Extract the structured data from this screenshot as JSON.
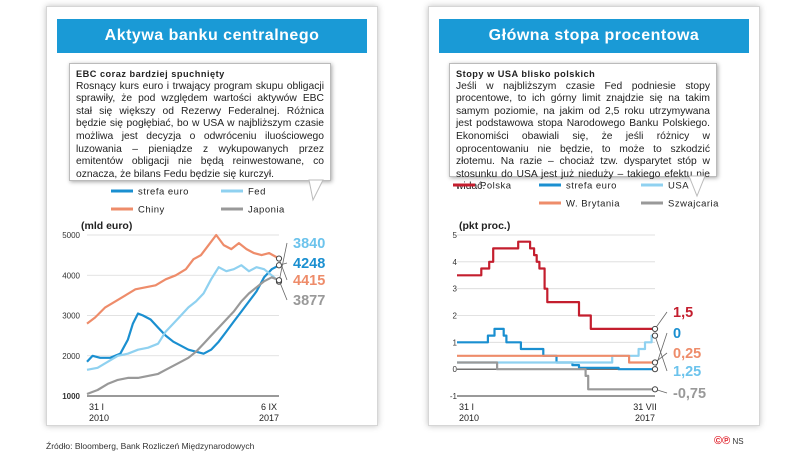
{
  "left": {
    "title": "Aktywa banku centralnego",
    "note_title": "EBC coraz bardziej spuchnięty",
    "note_body": "Rosnący kurs euro i trwający program skupu obligacji sprawiły, że pod względem wartości aktywów EBC stał się większy od Rezerwy Federalnej. Różnica będzie się pogłębiać, bo w USA w najbliższym czasie możliwa jest decyzja o odwróceniu iluościowego luzowania – pieniądze z wykupowanych przez emitentów obligacji nie będą reinwestowane, co oznacza, że bilans Fedu będzie się kurczył."
  },
  "right": {
    "title": "Główna stopa procentowa",
    "note_title": "Stopy w USA blisko polskich",
    "note_body": "Jeśli w najbliższym czasie Fed podniesie stopy procentowe, to ich górny limit znajdzie się na takim samym poziomie, na jakim od 2,5 roku utrzymywana jest podstawowa stopa Narodowego Banku Polskiego. Ekonomiści obawiali się, że jeśli różnicy w oprocentowaniu nie będzie, to może to szkodzić złotemu. Na razie – chociaż tzw. dysparytet stóp w stosunku do USA jest już nieduży – takiego efektu nie widać."
  },
  "footer": {
    "source": "Źródło: Bloomberg, Bank Rozliczeń Międzynarodowych",
    "logo_mark": "©℗",
    "logo_text": "NS"
  },
  "chart_data": [
    {
      "type": "line",
      "ylabel": "(mld euro)",
      "ylim": [
        1000,
        5000
      ],
      "yticks": [
        "1000",
        "2000",
        "3000",
        "4000",
        "5000"
      ],
      "xlim": [
        2010.08,
        2017.69
      ],
      "x_tick_labels": [
        {
          "line1": "31 I",
          "line2": "2010"
        },
        {
          "line1": "6 IX",
          "line2": "2017"
        }
      ],
      "legend_placement": "top",
      "series": [
        {
          "name": "strefa euro",
          "color": "#1a8fd0",
          "end_label": "4248",
          "x": [
            2010.08,
            2010.3,
            2010.6,
            2011.0,
            2011.4,
            2011.7,
            2011.9,
            2012.1,
            2012.3,
            2012.6,
            2012.9,
            2013.2,
            2013.5,
            2013.8,
            2014.1,
            2014.4,
            2014.7,
            2015.0,
            2015.3,
            2015.6,
            2015.9,
            2016.2,
            2016.5,
            2016.8,
            2017.1,
            2017.4,
            2017.69
          ],
          "y": [
            1850,
            2000,
            1950,
            1950,
            2050,
            2400,
            2800,
            3050,
            3000,
            2900,
            2700,
            2500,
            2350,
            2250,
            2150,
            2100,
            2050,
            2150,
            2350,
            2600,
            2850,
            3100,
            3350,
            3600,
            3950,
            4150,
            4248
          ]
        },
        {
          "name": "Fed",
          "color": "#8fd1f0",
          "end_label": "3840",
          "x": [
            2010.08,
            2010.5,
            2010.9,
            2011.3,
            2011.7,
            2012.1,
            2012.5,
            2012.9,
            2013.2,
            2013.5,
            2013.8,
            2014.1,
            2014.4,
            2014.7,
            2015.0,
            2015.3,
            2015.6,
            2015.9,
            2016.2,
            2016.5,
            2016.8,
            2017.1,
            2017.4,
            2017.69
          ],
          "y": [
            1650,
            1700,
            1850,
            2000,
            2050,
            2150,
            2200,
            2300,
            2600,
            2800,
            3000,
            3200,
            3350,
            3550,
            3900,
            4200,
            4100,
            4150,
            4250,
            4100,
            4200,
            4150,
            4000,
            3840
          ]
        },
        {
          "name": "Chiny",
          "color": "#ee8c6a",
          "end_label": "4415",
          "x": [
            2010.08,
            2010.4,
            2010.8,
            2011.2,
            2011.6,
            2012.0,
            2012.4,
            2012.8,
            2013.2,
            2013.6,
            2014.0,
            2014.3,
            2014.6,
            2014.9,
            2015.2,
            2015.5,
            2015.8,
            2016.1,
            2016.4,
            2016.7,
            2017.0,
            2017.3,
            2017.69
          ],
          "y": [
            2800,
            2950,
            3200,
            3350,
            3500,
            3650,
            3700,
            3750,
            3900,
            4000,
            4150,
            4400,
            4500,
            4750,
            5000,
            4750,
            4650,
            4800,
            4650,
            4550,
            4500,
            4550,
            4415
          ]
        },
        {
          "name": "Japonia",
          "color": "#999999",
          "end_label": "3877",
          "x": [
            2010.08,
            2010.5,
            2010.9,
            2011.3,
            2011.7,
            2012.1,
            2012.5,
            2012.9,
            2013.2,
            2013.5,
            2013.8,
            2014.1,
            2014.4,
            2014.7,
            2015.0,
            2015.3,
            2015.6,
            2015.9,
            2016.2,
            2016.5,
            2016.8,
            2017.1,
            2017.4,
            2017.69
          ],
          "y": [
            1050,
            1150,
            1300,
            1400,
            1450,
            1450,
            1500,
            1550,
            1650,
            1750,
            1850,
            1950,
            2100,
            2300,
            2500,
            2700,
            2900,
            3100,
            3350,
            3550,
            3700,
            3850,
            3950,
            3877
          ]
        }
      ]
    },
    {
      "type": "line",
      "ylabel": "(pkt proc.)",
      "ylim": [
        -1,
        5
      ],
      "yticks": [
        "-1",
        "0",
        "1",
        "2",
        "3",
        "4",
        "5"
      ],
      "xlim": [
        2010.08,
        2017.58
      ],
      "x_tick_labels": [
        {
          "line1": "31 I",
          "line2": "2010"
        },
        {
          "line1": "31 VII",
          "line2": "2017"
        }
      ],
      "legend_placement": "top",
      "series": [
        {
          "name": "Polska",
          "color": "#c41e2e",
          "end_label": "1,5",
          "x": [
            2010.08,
            2011.0,
            2011.0,
            2011.3,
            2011.3,
            2011.45,
            2011.45,
            2012.4,
            2012.4,
            2012.85,
            2012.85,
            2013.0,
            2013.0,
            2013.1,
            2013.1,
            2013.2,
            2013.2,
            2013.4,
            2013.4,
            2013.5,
            2013.5,
            2014.7,
            2014.7,
            2015.15,
            2015.15,
            2017.58
          ],
          "y": [
            3.5,
            3.5,
            3.75,
            3.75,
            4.0,
            4.0,
            4.5,
            4.5,
            4.75,
            4.75,
            4.5,
            4.5,
            4.25,
            4.25,
            4.0,
            4.0,
            3.75,
            3.75,
            3.0,
            3.0,
            2.5,
            2.5,
            2.0,
            2.0,
            1.5,
            1.5
          ]
        },
        {
          "name": "strefa euro",
          "color": "#1a8fd0",
          "end_label": "0",
          "x": [
            2010.08,
            2011.25,
            2011.25,
            2011.5,
            2011.5,
            2011.85,
            2011.85,
            2011.95,
            2011.95,
            2012.5,
            2012.5,
            2013.35,
            2013.35,
            2013.85,
            2013.85,
            2014.45,
            2014.45,
            2014.7,
            2014.7,
            2016.2,
            2016.2,
            2017.58
          ],
          "y": [
            1.0,
            1.0,
            1.25,
            1.25,
            1.5,
            1.5,
            1.25,
            1.25,
            1.0,
            1.0,
            0.75,
            0.75,
            0.5,
            0.5,
            0.25,
            0.25,
            0.15,
            0.15,
            0.05,
            0.05,
            0.0,
            0.0
          ]
        },
        {
          "name": "USA",
          "color": "#8fd1f0",
          "end_label": "1,25",
          "x": [
            2010.08,
            2015.96,
            2015.96,
            2016.96,
            2016.96,
            2017.2,
            2017.2,
            2017.45,
            2017.45,
            2017.58
          ],
          "y": [
            0.25,
            0.25,
            0.5,
            0.5,
            0.75,
            0.75,
            1.0,
            1.0,
            1.25,
            1.25
          ]
        },
        {
          "name": "W. Brytania",
          "color": "#ee8c6a",
          "end_label": "0,25",
          "x": [
            2010.08,
            2016.6,
            2016.6,
            2017.58
          ],
          "y": [
            0.5,
            0.5,
            0.25,
            0.25
          ]
        },
        {
          "name": "Szwajcaria",
          "color": "#999999",
          "end_label": "-0,75",
          "x": [
            2010.08,
            2011.6,
            2011.6,
            2014.95,
            2014.95,
            2015.05,
            2015.05,
            2017.58
          ],
          "y": [
            0.25,
            0.25,
            0.0,
            0.0,
            -0.25,
            -0.25,
            -0.75,
            -0.75
          ]
        }
      ]
    }
  ]
}
